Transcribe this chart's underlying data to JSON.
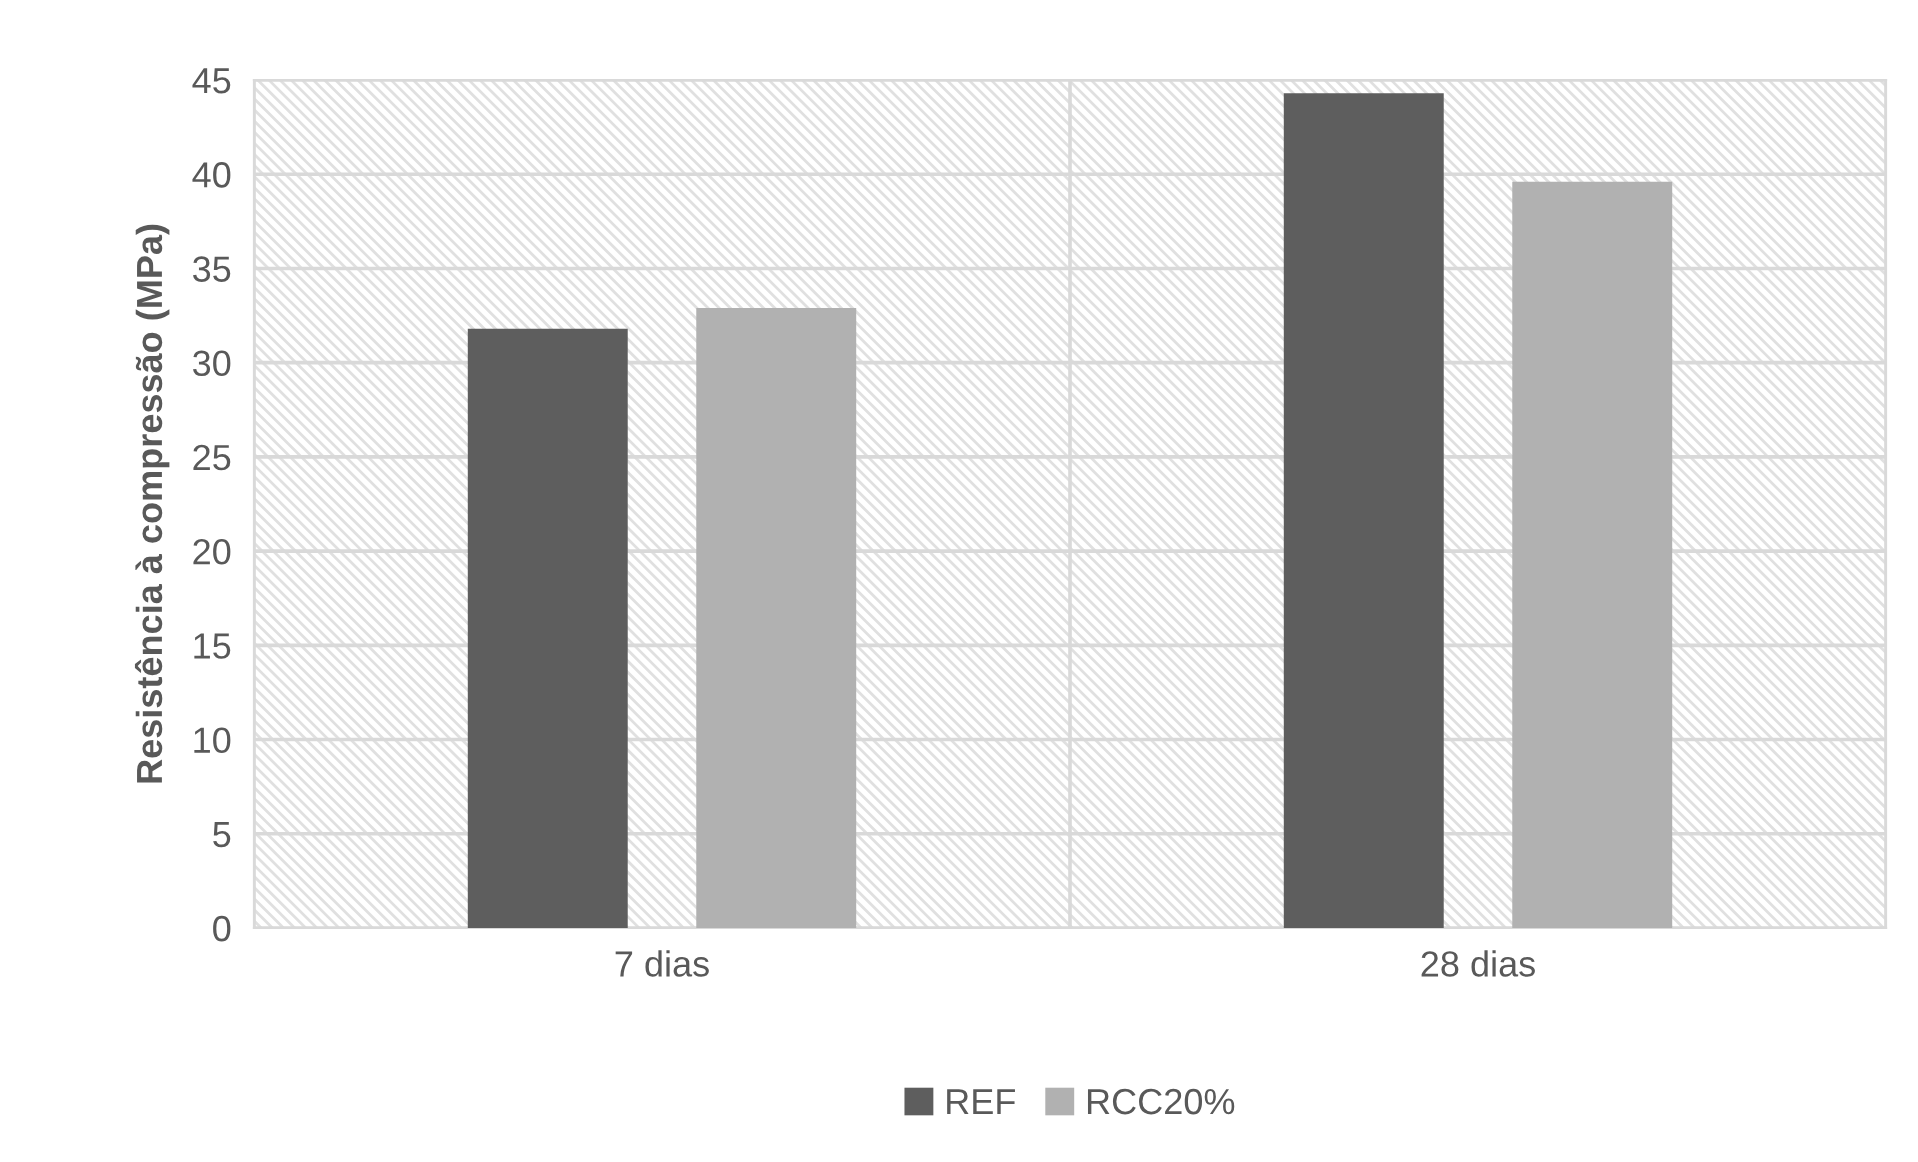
{
  "chart_data": {
    "type": "bar",
    "ylabel": "Resistência à compressão (MPa)",
    "categories": [
      "7 dias",
      "28 dias"
    ],
    "series": [
      {
        "name": "REF",
        "color": "#5e5e5e",
        "values": [
          31.8,
          44.3
        ]
      },
      {
        "name": "RCC20%",
        "color": "#b1b1b1",
        "values": [
          32.9,
          39.6
        ]
      }
    ],
    "ylim": [
      0,
      45
    ],
    "yticks": [
      0,
      5,
      10,
      15,
      20,
      25,
      30,
      35,
      40,
      45
    ],
    "grid": true,
    "legend": "bottom"
  }
}
